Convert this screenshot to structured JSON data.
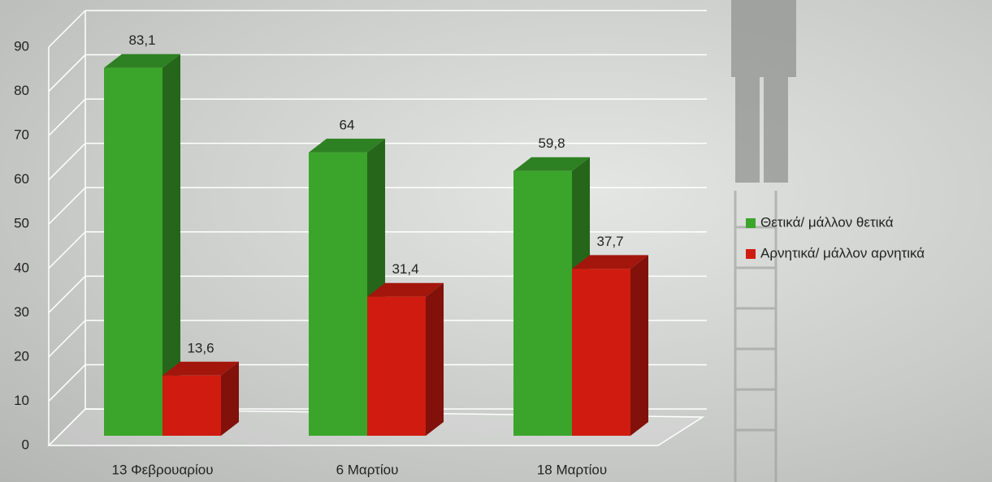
{
  "chart_data": {
    "type": "bar3d",
    "categories": [
      "13 Φεβρουαρίου",
      "6 Μαρτίου",
      "18 Μαρτίου"
    ],
    "series": [
      {
        "name": "Θετικά/ μάλλον θετικά",
        "color": "#3ba52b",
        "values": [
          83.1,
          64,
          59.8
        ],
        "value_labels": [
          "83,1",
          "64",
          "59,8"
        ]
      },
      {
        "name": "Αρνητικά/ μάλλον αρνητικά",
        "color": "#d01c10",
        "values": [
          13.6,
          31.4,
          37.7
        ],
        "value_labels": [
          "13,6",
          "31,4",
          "37,7"
        ]
      }
    ],
    "ylim": [
      0,
      90
    ],
    "yticks": [
      0,
      10,
      20,
      30,
      40,
      50,
      60,
      70,
      80,
      90
    ],
    "grid": true,
    "legend": "right"
  }
}
